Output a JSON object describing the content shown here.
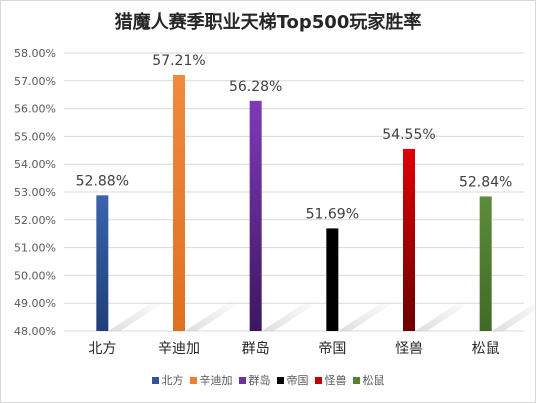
{
  "chart_data": {
    "type": "bar",
    "title": "猎魔人赛季职业天梯Top500玩家胜率",
    "categories": [
      "北方",
      "辛迪加",
      "群岛",
      "帝国",
      "怪兽",
      "松鼠"
    ],
    "values": [
      52.88,
      57.21,
      56.28,
      51.69,
      54.55,
      52.84
    ],
    "value_labels": [
      "52.88%",
      "57.21%",
      "56.28%",
      "51.69%",
      "54.55%",
      "52.84%"
    ],
    "colors": [
      "#2f5597",
      "#ed7d31",
      "#7030a0",
      "#000000",
      "#c00000",
      "#548235"
    ],
    "ylim": [
      48,
      58
    ],
    "y_ticks": [
      "48.00%",
      "49.00%",
      "50.00%",
      "51.00%",
      "52.00%",
      "53.00%",
      "54.00%",
      "55.00%",
      "56.00%",
      "57.00%",
      "58.00%"
    ],
    "grid": true,
    "legend_position": "bottom"
  }
}
